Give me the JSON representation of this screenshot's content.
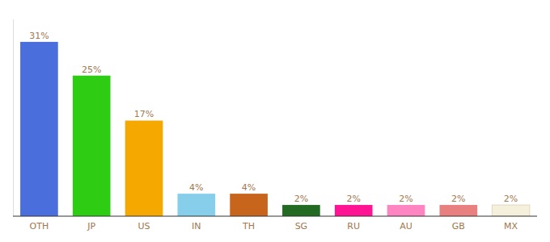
{
  "chart_data": {
    "type": "bar",
    "categories": [
      "OTH",
      "JP",
      "US",
      "IN",
      "TH",
      "SG",
      "RU",
      "AU",
      "GB",
      "MX"
    ],
    "values": [
      31,
      25,
      17,
      4,
      4,
      2,
      2,
      2,
      2,
      2
    ],
    "value_labels": [
      "31%",
      "25%",
      "17%",
      "4%",
      "4%",
      "2%",
      "2%",
      "2%",
      "2%",
      "2%"
    ],
    "colors": [
      "#4a6fdc",
      "#2ecc12",
      "#f5a800",
      "#87ceeb",
      "#c8651d",
      "#236b23",
      "#ff1493",
      "#ff85c2",
      "#e88080",
      "#f5f0dc"
    ],
    "ylim": [
      0,
      35
    ],
    "data_labels": true,
    "tick_labels": "x",
    "grid": false
  }
}
